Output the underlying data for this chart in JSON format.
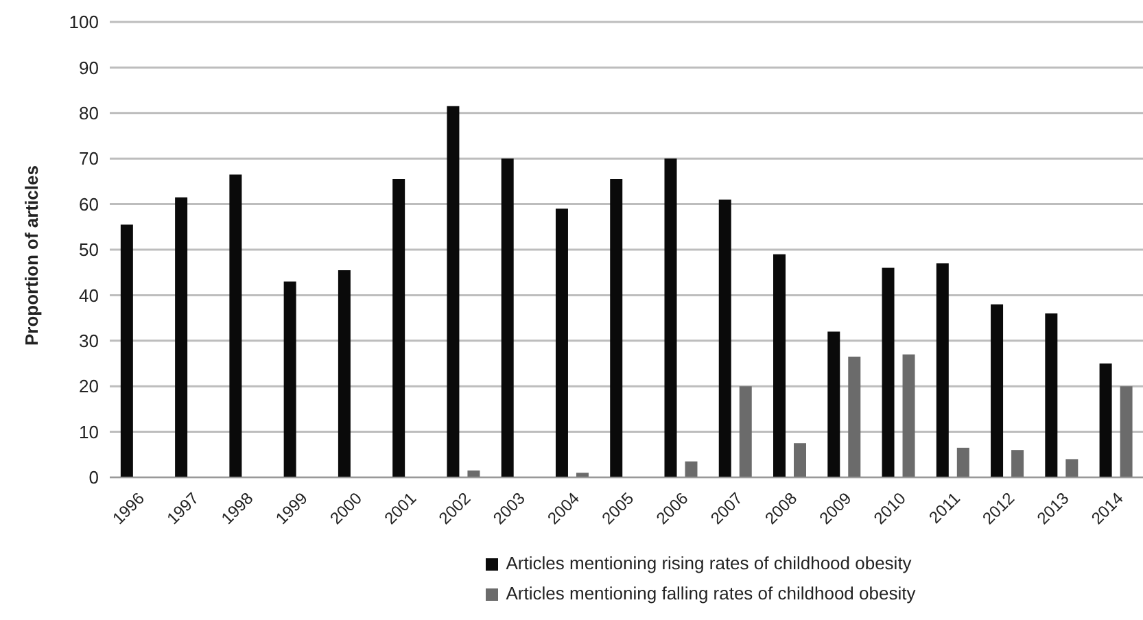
{
  "chart_data": {
    "type": "bar",
    "ylabel": "Proportion of articles",
    "categories": [
      "1996",
      "1997",
      "1998",
      "1999",
      "2000",
      "2001",
      "2002",
      "2003",
      "2004",
      "2005",
      "2006",
      "2007",
      "2008",
      "2009",
      "2010",
      "2011",
      "2012",
      "2013",
      "2014"
    ],
    "series": [
      {
        "name": "Articles mentioning rising rates of childhood obesity",
        "color": "#0a0a0a",
        "values": [
          55.5,
          61.5,
          66.5,
          43,
          45.5,
          65.5,
          81.5,
          70,
          59,
          65.5,
          70,
          61,
          49,
          32,
          46,
          47,
          38,
          36,
          25
        ]
      },
      {
        "name": "Articles mentioning falling rates of childhood obesity",
        "color": "#6b6b6b",
        "values": [
          0,
          0,
          0,
          0,
          0,
          0,
          1.5,
          0,
          1,
          0,
          3.5,
          20,
          7.5,
          26.5,
          27,
          6.5,
          6,
          4,
          20
        ]
      }
    ],
    "ylim": [
      0,
      100
    ],
    "yticks": [
      0,
      10,
      20,
      30,
      40,
      50,
      60,
      70,
      80,
      90,
      100
    ],
    "grid": "y",
    "legend": "bottom"
  }
}
